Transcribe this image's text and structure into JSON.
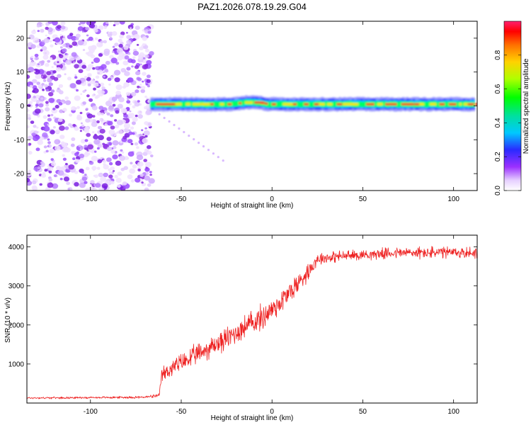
{
  "title": "PAZ1.2026.078.19.29.G04",
  "chart_data": [
    {
      "type": "heatmap",
      "xlabel": "Height of straight line (km)",
      "ylabel": "Frequency (Hz)",
      "xlim": [
        -135,
        113
      ],
      "ylim": [
        -25,
        25
      ],
      "xticks": [
        -100,
        -50,
        0,
        50,
        100
      ],
      "yticks": [
        -20,
        -10,
        0,
        10,
        20
      ],
      "colorbar": {
        "label": "Normalized spectral amplitude",
        "range": [
          0.0,
          1.0
        ],
        "ticks": [
          0.0,
          0.2,
          0.4,
          0.6,
          0.8
        ],
        "tick_labels": [
          "0.0",
          "0.2",
          "0.4",
          "0.6",
          "0.8"
        ]
      },
      "noise_region": {
        "x_from": -135,
        "x_to": -66,
        "color": "#8a2be2"
      },
      "signal_band": {
        "x_from": -67,
        "x_to": 113,
        "center_freq": 0.5,
        "half_width": 1.4
      },
      "colors": {
        "low": "#0000ff",
        "mid": "#00ff00",
        "high": "#ff0000",
        "noise": "#8a2be2"
      }
    },
    {
      "type": "line",
      "xlabel": "Height of straight line (km)",
      "ylabel": "SNR (10 * v/v)",
      "xlim": [
        -135,
        113
      ],
      "ylim": [
        0,
        4300
      ],
      "xticks": [
        -100,
        -50,
        0,
        50,
        100
      ],
      "yticks": [
        1000,
        2000,
        3000,
        4000
      ],
      "series": [
        {
          "name": "SNR",
          "color": "#ee2222",
          "x": [
            -135,
            -100,
            -70,
            -62,
            -61,
            -55,
            -45,
            -35,
            -25,
            -15,
            -5,
            5,
            15,
            22,
            25,
            35,
            50,
            70,
            90,
            113
          ],
          "y": [
            130,
            140,
            150,
            190,
            700,
            900,
            1150,
            1400,
            1650,
            1950,
            2200,
            2600,
            3100,
            3500,
            3700,
            3750,
            3800,
            3850,
            3850,
            3850
          ],
          "noise": [
            30,
            30,
            40,
            60,
            250,
            280,
            320,
            340,
            360,
            380,
            420,
            400,
            350,
            250,
            200,
            180,
            160,
            180,
            200,
            180
          ]
        }
      ]
    }
  ]
}
